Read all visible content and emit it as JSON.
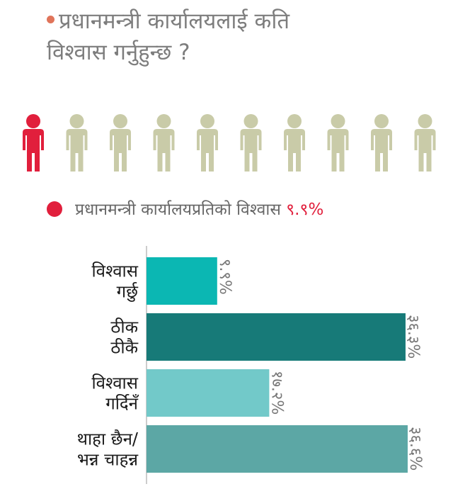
{
  "title": {
    "line1": "प्रधानमन्त्री कार्यालयलाई कति",
    "line2": "विश्वास गर्नुहुन्छ ?"
  },
  "pictogram": {
    "total": 10,
    "highlighted": 1,
    "highlight_color": "#e11f3c",
    "base_color": "#c9cba8"
  },
  "legend": {
    "label": "प्रधानमन्त्री कार्यालयप्रतिको विश्वास",
    "value": "९.९%",
    "color": "#e11f3c"
  },
  "chart_data": {
    "type": "bar",
    "orientation": "horizontal",
    "xlim": [
      0,
      37
    ],
    "categories": [
      [
        "विश्वास",
        "गर्छु"
      ],
      [
        "ठीक",
        "ठीकै"
      ],
      [
        "विश्वास",
        "गर्दिनँ"
      ],
      [
        "थाहा छैन/",
        "भन्न चाहन्न"
      ]
    ],
    "values": [
      9.9,
      36.3,
      17.2,
      36.6
    ],
    "value_labels": [
      "९.९%",
      "३६.३%",
      "१७.२%",
      "३६.६%"
    ],
    "colors": [
      "#0bb7b3",
      "#177a78",
      "#72c9c9",
      "#5ca7a5"
    ]
  }
}
